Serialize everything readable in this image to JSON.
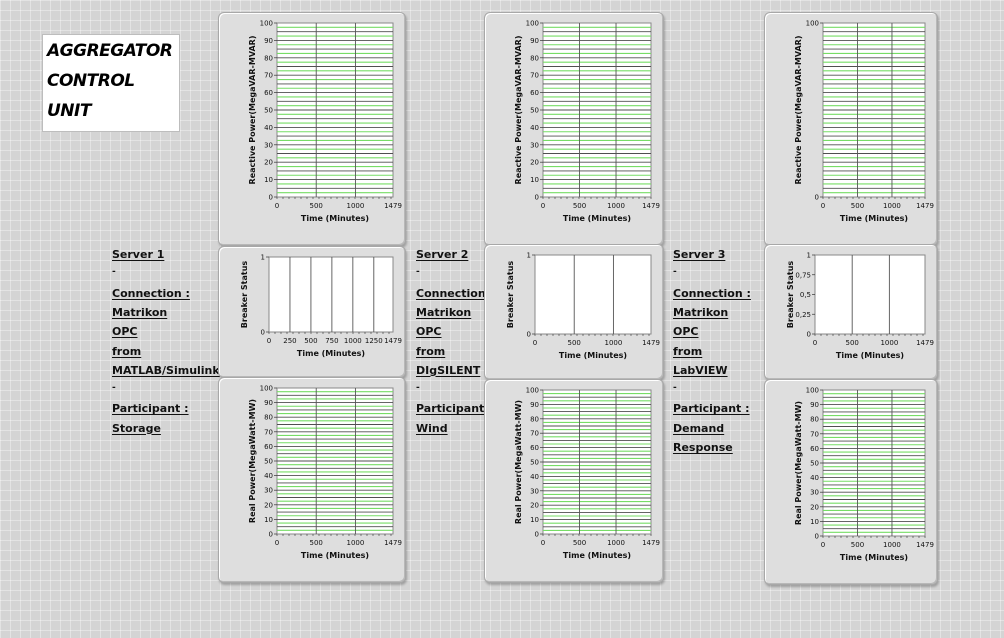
{
  "title": {
    "lines": [
      "AGGREGATOR",
      "CONTROL",
      "UNIT"
    ]
  },
  "servers": [
    {
      "lines": [
        "Server 1",
        "-",
        "Connection :",
        "Matrikon",
        "OPC",
        "from",
        "MATLAB/Simulink",
        "-",
        "Participant :",
        "Storage"
      ]
    },
    {
      "lines": [
        "Server 2",
        "-",
        "Connection :",
        "Matrikon",
        "OPC",
        "from",
        "DIgSILENT",
        "-",
        "Participant :",
        "Wind"
      ]
    },
    {
      "lines": [
        "Server 3",
        "-",
        "Connection :",
        "Matrikon",
        "OPC",
        "from",
        "LabVIEW",
        "-",
        "Participant :",
        "Demand",
        "Response"
      ]
    }
  ],
  "colors": {
    "plot_bg": "#ffffff",
    "grid_major": "#4f4f4f",
    "grid_minor": "#77dd66",
    "panel_bg": "#dedede",
    "axis_text": "#111111"
  },
  "chart_data": [
    {
      "id": "s1-reactive",
      "type": "line",
      "ylabel": "Reactive Power(MegaVAR-MVAR)",
      "xlabel": "Time (Minutes)",
      "xlim": [
        0,
        1479
      ],
      "ylim": [
        0,
        100
      ],
      "xticks": [
        "0",
        "500",
        "1000",
        "1479"
      ],
      "yticks": [
        "0",
        "10",
        "20",
        "30",
        "40",
        "50",
        "60",
        "70",
        "80",
        "90",
        "100"
      ],
      "series": []
    },
    {
      "id": "s1-breaker",
      "type": "line",
      "ylabel": "Breaker Status",
      "xlabel": "Time (Minutes)",
      "xlim": [
        0,
        1479
      ],
      "ylim": [
        0,
        1
      ],
      "xticks": [
        "0",
        "250",
        "500",
        "750",
        "1000",
        "1250",
        "1479"
      ],
      "yticks": [
        "0",
        "1"
      ],
      "series": []
    },
    {
      "id": "s1-real",
      "type": "line",
      "ylabel": "Real Power(MegaWatt-MW)",
      "xlabel": "Time (Minutes)",
      "xlim": [
        0,
        1479
      ],
      "ylim": [
        0,
        100
      ],
      "xticks": [
        "0",
        "500",
        "1000",
        "1479"
      ],
      "yticks": [
        "0",
        "10",
        "20",
        "30",
        "40",
        "50",
        "60",
        "70",
        "80",
        "90",
        "100"
      ],
      "series": []
    },
    {
      "id": "s2-reactive",
      "type": "line",
      "ylabel": "Reactive Power(MegaVAR-MVAR)",
      "xlabel": "Time (Minutes)",
      "xlim": [
        0,
        1479
      ],
      "ylim": [
        0,
        100
      ],
      "xticks": [
        "0",
        "500",
        "1000",
        "1479"
      ],
      "yticks": [
        "0",
        "10",
        "20",
        "30",
        "40",
        "50",
        "60",
        "70",
        "80",
        "90",
        "100"
      ],
      "series": []
    },
    {
      "id": "s2-breaker",
      "type": "line",
      "ylabel": "Breaker Status",
      "xlabel": "Time (Minutes)",
      "xlim": [
        0,
        1479
      ],
      "ylim": [
        0,
        1
      ],
      "xticks": [
        "0",
        "500",
        "1000",
        "1479"
      ],
      "yticks": [
        "0",
        "1"
      ],
      "series": []
    },
    {
      "id": "s2-real",
      "type": "line",
      "ylabel": "Real Power(MegaWatt-MW)",
      "xlabel": "Time (Minutes)",
      "xlim": [
        0,
        1479
      ],
      "ylim": [
        0,
        100
      ],
      "xticks": [
        "0",
        "500",
        "1000",
        "1479"
      ],
      "yticks": [
        "0",
        "10",
        "20",
        "30",
        "40",
        "50",
        "60",
        "70",
        "80",
        "90",
        "100"
      ],
      "series": []
    },
    {
      "id": "s3-reactive",
      "type": "line",
      "ylabel": "Reactive Power(MegaVAR-MVAR)",
      "xlabel": "Time (Minutes)",
      "xlim": [
        0,
        1479
      ],
      "ylim": [
        0,
        100
      ],
      "xticks": [
        "0",
        "500",
        "1000",
        "1479"
      ],
      "yticks": [
        "0",
        "100"
      ],
      "series": []
    },
    {
      "id": "s3-breaker",
      "type": "line",
      "ylabel": "Breaker Status",
      "xlabel": "Time (Minutes)",
      "xlim": [
        0,
        1479
      ],
      "ylim": [
        0,
        1
      ],
      "xticks": [
        "0",
        "500",
        "1000",
        "1479"
      ],
      "yticks": [
        "0",
        "0,25",
        "0,5",
        "0,75",
        "1"
      ],
      "series": []
    },
    {
      "id": "s3-real",
      "type": "line",
      "ylabel": "Real Power(MegaWatt-MW)",
      "xlabel": "Time (Minutes)",
      "xlim": [
        0,
        1479
      ],
      "ylim": [
        0,
        100
      ],
      "xticks": [
        "0",
        "500",
        "1000",
        "1479"
      ],
      "yticks": [
        "0",
        "10",
        "20",
        "30",
        "40",
        "50",
        "60",
        "70",
        "80",
        "90",
        "100"
      ],
      "series": []
    }
  ]
}
